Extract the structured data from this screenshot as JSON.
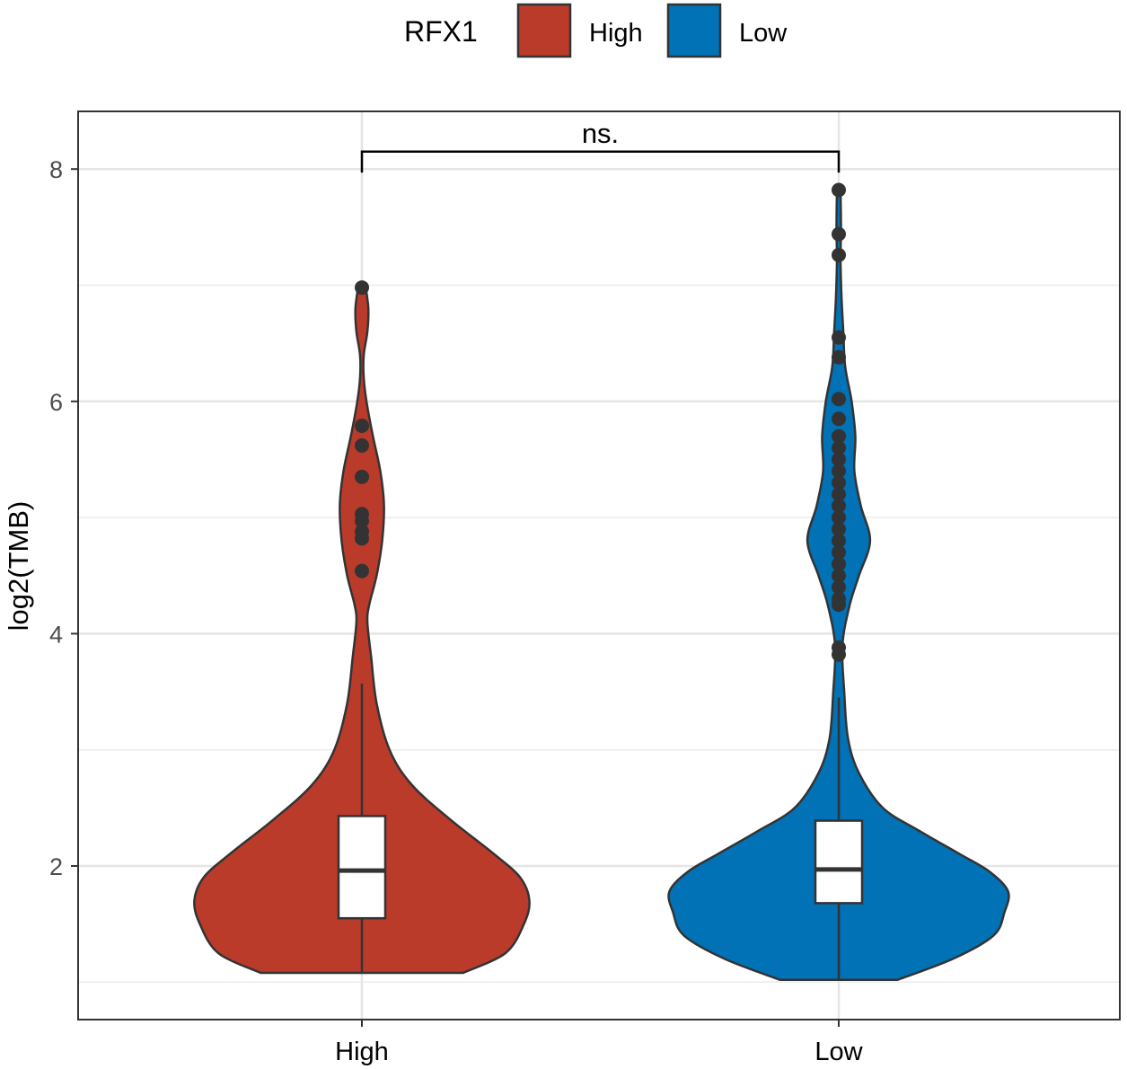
{
  "chart_data": {
    "type": "violin",
    "title": "",
    "xlabel": "",
    "ylabel": "log2(TMB)",
    "ylim": [
      0.7,
      8.5
    ],
    "yticks": [
      2,
      4,
      6,
      8
    ],
    "yticks_minor": [
      1,
      3,
      5,
      7
    ],
    "categories": [
      "High",
      "Low"
    ],
    "legend": {
      "title": "RFX1",
      "position": "top",
      "entries": [
        {
          "label": "High",
          "color": "#BB3B2B"
        },
        {
          "label": "Low",
          "color": "#0072B5"
        }
      ]
    },
    "significance": {
      "label": "ns.",
      "between": [
        "High",
        "Low"
      ],
      "y": 8.15
    },
    "series": [
      {
        "name": "High",
        "color": "#BB3B2B",
        "box": {
          "q1": 1.55,
          "median": 1.96,
          "q3": 2.43,
          "whisker_low": 1.08,
          "whisker_high": 3.57
        },
        "outliers": [
          6.98,
          5.79,
          5.62,
          5.35,
          5.03,
          4.97,
          4.88,
          4.82,
          4.54
        ],
        "violin": {
          "y": [
            1.08,
            1.25,
            1.5,
            1.7,
            1.9,
            2.1,
            2.4,
            2.7,
            3.0,
            3.4,
            3.8,
            4.1,
            4.25,
            4.5,
            4.8,
            5.1,
            5.4,
            5.7,
            6.0,
            6.2,
            6.4,
            6.6,
            6.8,
            6.99
          ],
          "width": [
            0.55,
            0.78,
            0.88,
            0.91,
            0.86,
            0.72,
            0.48,
            0.27,
            0.15,
            0.08,
            0.05,
            0.03,
            0.04,
            0.08,
            0.11,
            0.12,
            0.1,
            0.06,
            0.025,
            0.01,
            0.01,
            0.03,
            0.035,
            0.02
          ]
        }
      },
      {
        "name": "Low",
        "color": "#0072B5",
        "box": {
          "q1": 1.68,
          "median": 1.97,
          "q3": 2.39,
          "whisker_low": 1.02,
          "whisker_high": 3.45
        },
        "outliers": [
          7.82,
          7.44,
          7.26,
          6.55,
          6.38,
          6.02,
          5.85,
          5.7,
          5.6,
          5.5,
          5.4,
          5.3,
          5.2,
          5.1,
          5.0,
          4.9,
          4.8,
          4.7,
          4.6,
          4.5,
          4.4,
          4.3,
          4.25,
          3.88,
          3.82
        ],
        "violin": {
          "y": [
            1.02,
            1.2,
            1.4,
            1.6,
            1.78,
            1.95,
            2.1,
            2.3,
            2.5,
            2.8,
            3.1,
            3.5,
            3.9,
            4.25,
            4.5,
            4.8,
            5.1,
            5.4,
            5.7,
            6.0,
            6.3,
            6.6,
            6.9,
            7.2,
            7.5,
            7.82
          ],
          "width": [
            0.32,
            0.62,
            0.84,
            0.9,
            0.92,
            0.82,
            0.66,
            0.44,
            0.24,
            0.11,
            0.05,
            0.03,
            0.02,
            0.06,
            0.11,
            0.17,
            0.12,
            0.085,
            0.09,
            0.07,
            0.035,
            0.025,
            0.015,
            0.01,
            0.012,
            0.01
          ]
        }
      }
    ]
  }
}
